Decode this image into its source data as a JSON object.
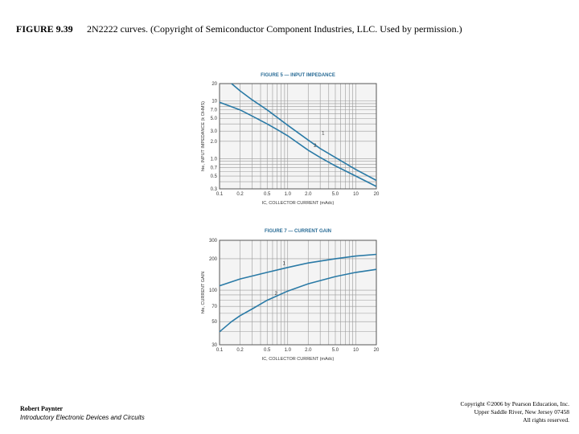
{
  "figure": {
    "label": "FIGURE 9.39",
    "caption": "2N2222 curves. (Copyright of Semiconductor Component Industries, LLC. Used by permission.)"
  },
  "footer": {
    "author": "Robert Paynter",
    "book": "Introductory Electronic Devices and Circuits",
    "copyright_lines": [
      "Copyright ©2006 by Pearson Education, Inc.",
      "Upper Saddle River, New Jersey 07458",
      "All rights reserved."
    ]
  },
  "chart_data": [
    {
      "type": "line",
      "title": "FIGURE 5 — INPUT IMPEDANCE",
      "xlabel": "IC, COLLECTOR CURRENT (mAdc)",
      "ylabel": "hie, INPUT IMPEDANCE (k OHMS)",
      "x_scale": "log",
      "y_scale": "log",
      "xlim": [
        0.1,
        20
      ],
      "ylim": [
        0.3,
        20
      ],
      "x_ticks": [
        0.1,
        0.2,
        0.5,
        1.0,
        2.0,
        5.0,
        10,
        20
      ],
      "x_tick_labels": [
        "0.1",
        "0.2",
        "0.5",
        "1.0",
        "2.0",
        "5.0",
        "10",
        "20"
      ],
      "y_ticks": [
        0.3,
        0.5,
        0.7,
        1.0,
        2.0,
        3.0,
        5.0,
        7.0,
        10,
        20
      ],
      "y_tick_labels": [
        "0.3",
        "0.5",
        "0.7",
        "1.0",
        "2.0",
        "3.0",
        "5.0",
        "7.0",
        "10",
        "20"
      ],
      "grid": true,
      "series": [
        {
          "name": "1",
          "x": [
            0.15,
            0.2,
            0.3,
            0.5,
            0.7,
            1.0,
            2.0,
            3.0,
            5.0,
            10,
            20
          ],
          "y": [
            20,
            15,
            10.5,
            7,
            5.2,
            3.8,
            2.1,
            1.5,
            1.05,
            0.65,
            0.42
          ]
        },
        {
          "name": "2",
          "x": [
            0.1,
            0.2,
            0.3,
            0.5,
            0.7,
            1.0,
            2.0,
            3.0,
            5.0,
            10,
            20
          ],
          "y": [
            9.5,
            7,
            5.5,
            4,
            3.2,
            2.5,
            1.4,
            1.05,
            0.75,
            0.5,
            0.33
          ]
        }
      ]
    },
    {
      "type": "line",
      "title": "FIGURE 7 — CURRENT GAIN",
      "xlabel": "IC, COLLECTOR CURRENT (mAdc)",
      "ylabel": "hfe, CURRENT GAIN",
      "x_scale": "log",
      "y_scale": "log",
      "xlim": [
        0.1,
        20
      ],
      "ylim": [
        30,
        300
      ],
      "x_ticks": [
        0.1,
        0.2,
        0.5,
        1.0,
        2.0,
        5.0,
        10,
        20
      ],
      "x_tick_labels": [
        "0.1",
        "0.2",
        "0.5",
        "1.0",
        "2.0",
        "5.0",
        "10",
        "20"
      ],
      "y_ticks": [
        30,
        50,
        70,
        100,
        200,
        300
      ],
      "y_tick_labels": [
        "30",
        "50",
        "70",
        "100",
        "200",
        "300"
      ],
      "grid": true,
      "series": [
        {
          "name": "1",
          "x": [
            0.1,
            0.2,
            0.5,
            1.0,
            2.0,
            5.0,
            10,
            20
          ],
          "y": [
            110,
            128,
            148,
            165,
            182,
            200,
            212,
            220
          ]
        },
        {
          "name": "2",
          "x": [
            0.1,
            0.15,
            0.2,
            0.3,
            0.5,
            1.0,
            2.0,
            5.0,
            10,
            20
          ],
          "y": [
            40,
            50,
            57,
            66,
            80,
            98,
            115,
            135,
            148,
            158
          ]
        }
      ]
    }
  ],
  "colors": {
    "curve": "#2a7aa6",
    "title": "#2a6c96",
    "plot_bg": "#f4f4f4",
    "grid": "#9a9a9a"
  }
}
